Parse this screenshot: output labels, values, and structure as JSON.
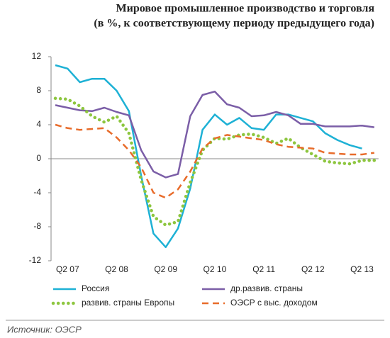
{
  "chart_data": {
    "type": "line",
    "title": "Мировое промышленное производство и торговля",
    "subtitle": "(в %, к соответствующему периоду предыдущего года)",
    "source": "Источник: ОЭСР",
    "categories": [
      null,
      "Q2 07",
      null,
      null,
      null,
      "Q2 08",
      null,
      null,
      null,
      "Q2 09",
      null,
      null,
      null,
      "Q2 10",
      null,
      null,
      null,
      "Q2 11",
      null,
      null,
      null,
      "Q2 12",
      null,
      null,
      null,
      "Q2 13",
      null
    ],
    "ylim": [
      -12,
      12
    ],
    "yticks": [
      -12,
      -8,
      -4,
      0,
      4,
      8,
      12
    ],
    "grid": false,
    "series": [
      {
        "name": "Россия",
        "color": "#1eb1d5",
        "style": "solid",
        "values": [
          11,
          10.6,
          9,
          9.4,
          9.4,
          8,
          5.6,
          -2,
          -8.8,
          -10.4,
          -8.2,
          -3.5,
          3.4,
          5.2,
          4,
          4.8,
          3.6,
          3.4,
          5.2,
          5.2,
          4.8,
          4.4,
          3,
          2.2,
          1.6,
          1.2,
          null
        ]
      },
      {
        "name": "др.развив. страны",
        "color": "#7b5ea7",
        "style": "solid",
        "values": [
          6.3,
          6.0,
          5.7,
          5.6,
          6.0,
          5.5,
          5.1,
          1.0,
          -1.5,
          -2.2,
          -1.8,
          5.0,
          7.5,
          7.9,
          6.4,
          6.0,
          5.0,
          5.1,
          5.5,
          5.1,
          4.1,
          4.1,
          3.8,
          3.8,
          3.8,
          3.9,
          3.7
        ]
      },
      {
        "name": "развив. страны Европы",
        "color": "#8dc63f",
        "style": "dotted",
        "values": [
          7.1,
          7.0,
          6.2,
          5.0,
          4.3,
          5.0,
          3.0,
          -2.5,
          -6.8,
          -7.8,
          -7.4,
          -2.8,
          1.0,
          2.4,
          2.3,
          2.8,
          2.9,
          2.5,
          1.8,
          2.4,
          1.3,
          0.5,
          -0.3,
          -0.5,
          -0.6,
          -0.2,
          -0.2
        ]
      },
      {
        "name": "ОЭСР с выс. доходом",
        "color": "#e86c2b",
        "style": "dashed",
        "values": [
          4.0,
          3.6,
          3.4,
          3.5,
          3.6,
          2.5,
          1.0,
          -1.0,
          -4.0,
          -4.6,
          -3.6,
          -1.5,
          1.2,
          2.4,
          2.8,
          2.6,
          2.4,
          2.2,
          1.7,
          1.4,
          1.3,
          1.2,
          0.7,
          0.6,
          0.5,
          0.5,
          0.7
        ]
      }
    ]
  }
}
